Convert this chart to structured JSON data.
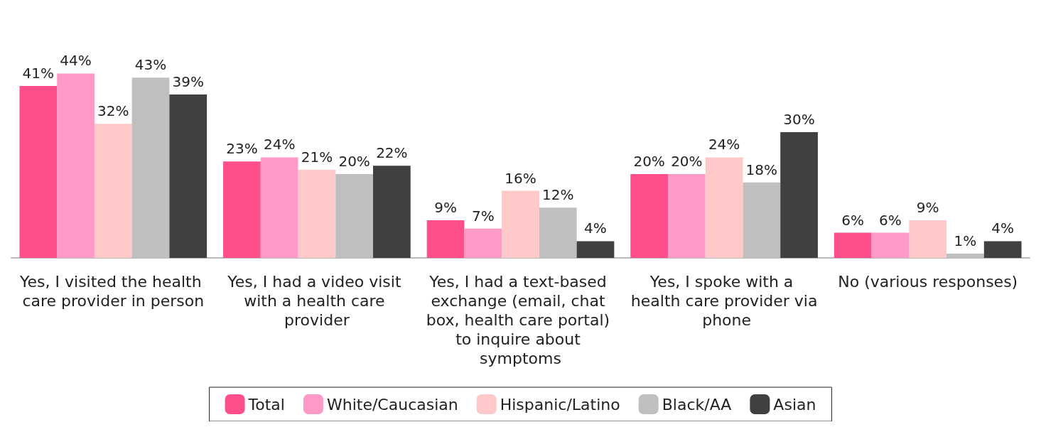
{
  "chart_data": {
    "type": "bar",
    "categories": [
      "Yes, I visited the health care provider in person",
      "Yes, I had a video visit with a health care provider",
      "Yes, I had a text-based exchange (email, chat box, health care portal) to inquire about symptoms",
      "Yes, I spoke with a health care provider via phone",
      "No (various responses)"
    ],
    "series": [
      {
        "name": "Total",
        "color": "#ff4f8b",
        "values": [
          41,
          23,
          9,
          20,
          6
        ],
        "value_labels": [
          "41%",
          "23%",
          "9%",
          "20%",
          "6%"
        ]
      },
      {
        "name": "White/Caucasian",
        "color": "#ff99c8",
        "values": [
          44,
          24,
          7,
          20,
          6
        ],
        "value_labels": [
          "44%",
          "24%",
          "7%",
          "20%",
          "6%"
        ]
      },
      {
        "name": "Hispanic/Latino",
        "color": "#ffc9c9",
        "values": [
          32,
          21,
          16,
          24,
          9
        ],
        "value_labels": [
          "32%",
          "21%",
          "16%",
          "24%",
          "9%"
        ]
      },
      {
        "name": "Black/AA",
        "color": "#bfbfbf",
        "values": [
          43,
          20,
          12,
          18,
          1
        ],
        "value_labels": [
          "43%",
          "20%",
          "12%",
          "18%",
          "1%"
        ]
      },
      {
        "name": "Asian",
        "color": "#404040",
        "values": [
          39,
          22,
          4,
          30,
          4
        ],
        "value_labels": [
          "39%",
          "22%",
          "4%",
          "30%",
          "4%"
        ]
      }
    ],
    "legend": "bottom",
    "grid": false
  }
}
